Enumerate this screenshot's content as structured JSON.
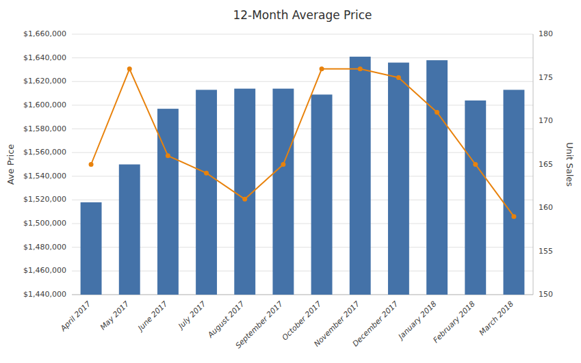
{
  "chart_data": {
    "type": "bar",
    "title": "12-Month Average Price",
    "categories": [
      "April 2017",
      "May 2017",
      "June 2017",
      "July 2017",
      "August 2017",
      "September 2017",
      "October 2017",
      "November 2017",
      "December 2017",
      "January 2018",
      "February 2018",
      "March 2018"
    ],
    "series": [
      {
        "type": "bar",
        "color": "#4472a8",
        "values": [
          1518000,
          1550000,
          1597000,
          1613000,
          1614000,
          1614000,
          1609000,
          1641000,
          1636000,
          1638000,
          1604000,
          1613000
        ]
      },
      {
        "type": "line",
        "axis": "y2",
        "color": "#E8820C",
        "marker": "circle",
        "values": [
          165,
          176,
          166,
          164,
          161,
          165,
          176,
          176,
          175,
          171,
          165,
          159
        ]
      }
    ],
    "ylabel": "Ave Price",
    "y2label": "Unit Sales",
    "ylim": [
      1440000,
      1660000
    ],
    "yticks": [
      {
        "value": 1440000,
        "label": "$1,440,000"
      },
      {
        "value": 1460000,
        "label": "$1,460,000"
      },
      {
        "value": 1480000,
        "label": "$1,480,000"
      },
      {
        "value": 1500000,
        "label": "$1,500,000"
      },
      {
        "value": 1520000,
        "label": "$1,520,000"
      },
      {
        "value": 1540000,
        "label": "$1,540,000"
      },
      {
        "value": 1560000,
        "label": "$1,560,000"
      },
      {
        "value": 1580000,
        "label": "$1,580,000"
      },
      {
        "value": 1600000,
        "label": "$1,600,000"
      },
      {
        "value": 1620000,
        "label": "$1,620,000"
      },
      {
        "value": 1640000,
        "label": "$1,640,000"
      },
      {
        "value": 1660000,
        "label": "$1,660,000"
      }
    ],
    "y2lim": [
      150,
      180
    ],
    "y2ticks": [
      150,
      155,
      160,
      165,
      170,
      175,
      180
    ],
    "grid": true
  }
}
